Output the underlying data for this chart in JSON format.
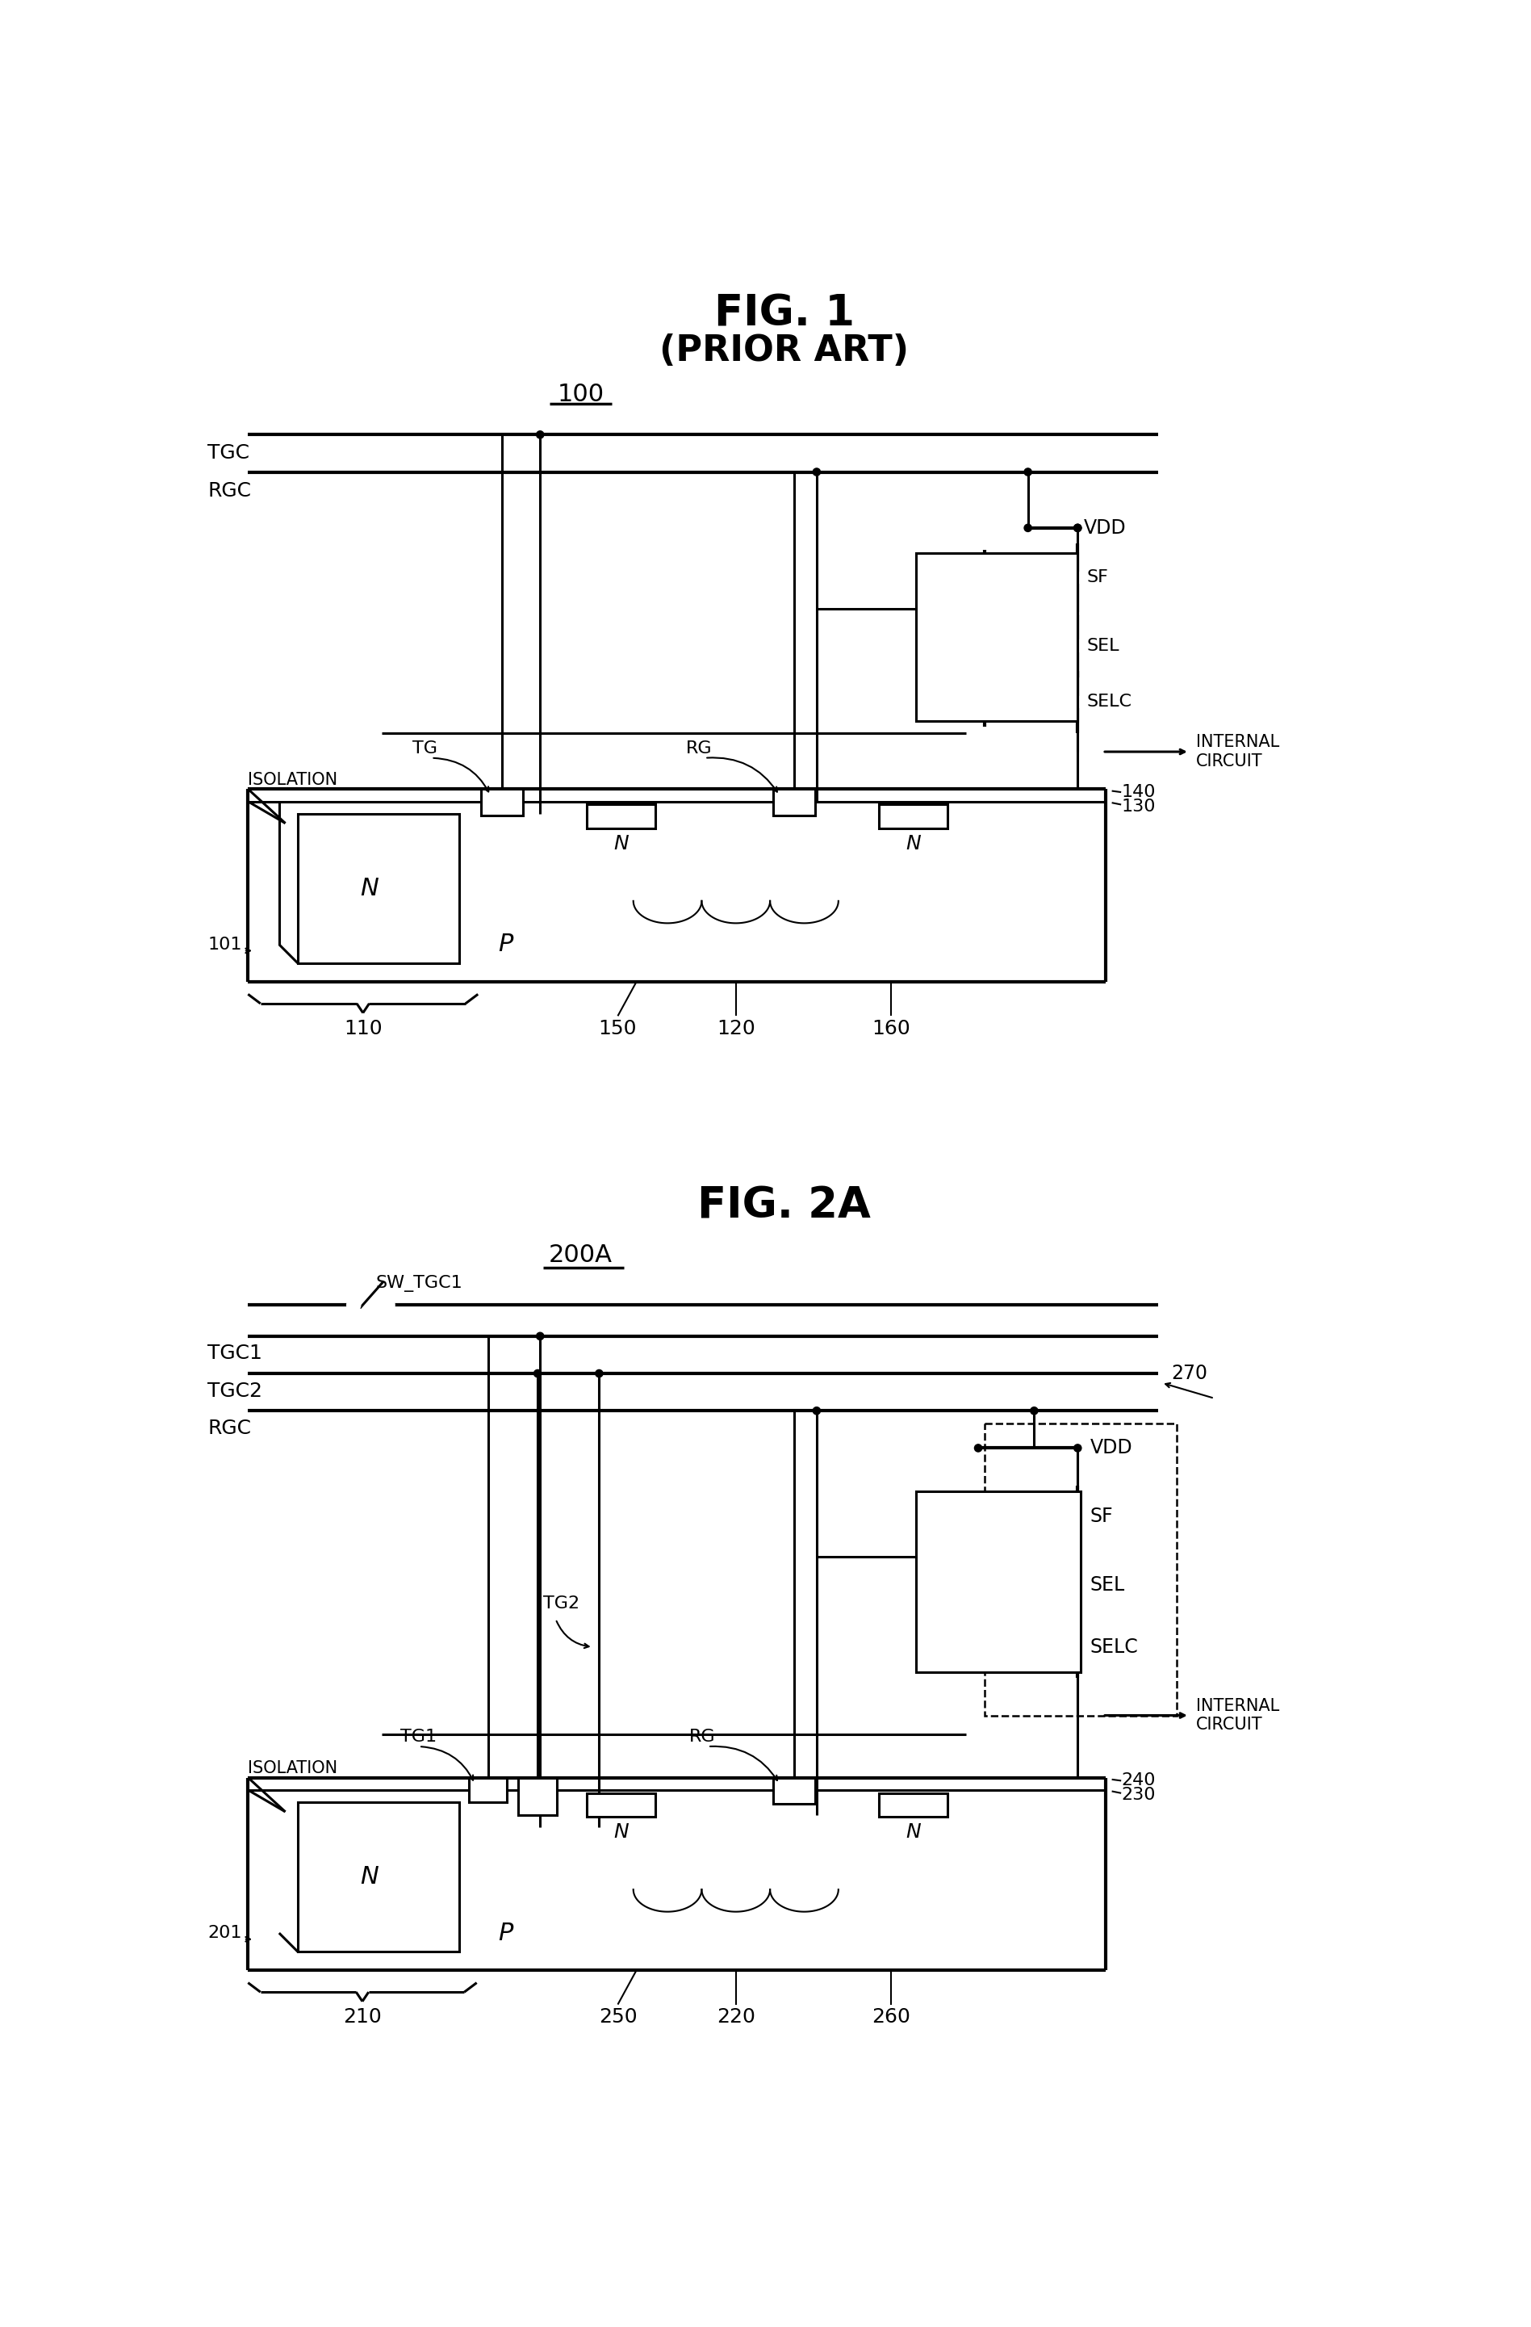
{
  "fig_title1": "FIG. 1",
  "fig_subtitle1": "(PRIOR ART)",
  "fig_label1": "100",
  "fig_title2": "FIG. 2A",
  "fig_label2": "200A",
  "bg_color": "#ffffff",
  "line_color": "#000000",
  "lw": 2.2,
  "lw_thin": 1.5,
  "lw_thick": 3.0
}
